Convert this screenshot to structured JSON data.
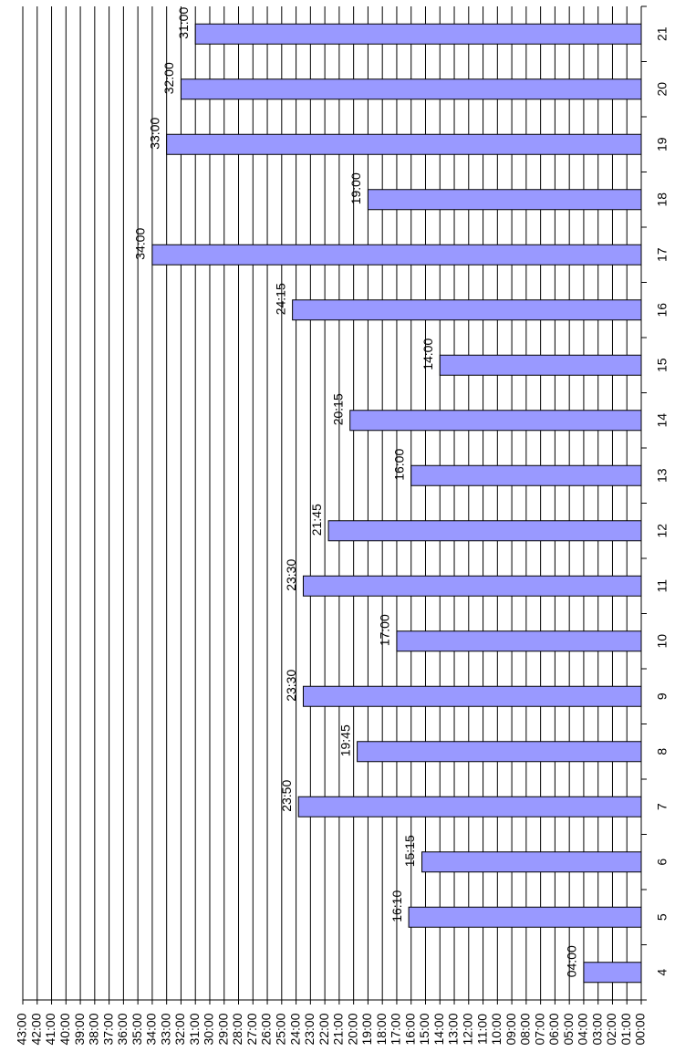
{
  "chart_data": {
    "type": "bar",
    "horizontal": true,
    "grid": true,
    "color": "#9999ff",
    "categories": [
      "4",
      "5",
      "6",
      "7",
      "8",
      "9",
      "10",
      "11",
      "12",
      "13",
      "14",
      "15",
      "16",
      "17",
      "18",
      "19",
      "20",
      "21"
    ],
    "values": [
      4,
      16.1667,
      15.25,
      23.8333,
      19.75,
      23.5,
      17,
      23.5,
      21.75,
      16,
      20.25,
      14,
      24.25,
      34,
      19,
      33,
      32,
      31
    ],
    "value_labels": [
      "04:00",
      "16:10",
      "15:15",
      "23:50",
      "19:45",
      "23:30",
      "17:00",
      "23:30",
      "21:45",
      "16:00",
      "20:15",
      "14:00",
      "24:15",
      "34:00",
      "19:00",
      "33:00",
      "32:00",
      "31:00"
    ],
    "xlim": [
      0,
      43
    ],
    "xticks": [
      {
        "value": 0,
        "label": "00:00"
      },
      {
        "value": 1,
        "label": "01:00"
      },
      {
        "value": 2,
        "label": "02:00"
      },
      {
        "value": 3,
        "label": "03:00"
      },
      {
        "value": 4,
        "label": "04:00"
      },
      {
        "value": 5,
        "label": "05:00"
      },
      {
        "value": 6,
        "label": "06:00"
      },
      {
        "value": 7,
        "label": "07:00"
      },
      {
        "value": 8,
        "label": "08:00"
      },
      {
        "value": 9,
        "label": "09:00"
      },
      {
        "value": 10,
        "label": "10:00"
      },
      {
        "value": 11,
        "label": "11:00"
      },
      {
        "value": 12,
        "label": "12:00"
      },
      {
        "value": 13,
        "label": "13:00"
      },
      {
        "value": 14,
        "label": "14:00"
      },
      {
        "value": 15,
        "label": "15:00"
      },
      {
        "value": 16,
        "label": "16:00"
      },
      {
        "value": 17,
        "label": "17:00"
      },
      {
        "value": 18,
        "label": "18:00"
      },
      {
        "value": 19,
        "label": "19:00"
      },
      {
        "value": 20,
        "label": "20:00"
      },
      {
        "value": 21,
        "label": "21:00"
      },
      {
        "value": 22,
        "label": "22:00"
      },
      {
        "value": 23,
        "label": "23:00"
      },
      {
        "value": 24,
        "label": "24:00"
      },
      {
        "value": 25,
        "label": "25:00"
      },
      {
        "value": 26,
        "label": "26:00"
      },
      {
        "value": 27,
        "label": "27:00"
      },
      {
        "value": 28,
        "label": "28:00"
      },
      {
        "value": 29,
        "label": "29:00"
      },
      {
        "value": 30,
        "label": "30:00"
      },
      {
        "value": 31,
        "label": "31:00"
      },
      {
        "value": 32,
        "label": "32:00"
      },
      {
        "value": 33,
        "label": "33:00"
      },
      {
        "value": 34,
        "label": "34:00"
      },
      {
        "value": 35,
        "label": "35:00"
      },
      {
        "value": 36,
        "label": "36:00"
      },
      {
        "value": 37,
        "label": "37:00"
      },
      {
        "value": 38,
        "label": "38:00"
      },
      {
        "value": 39,
        "label": "39:00"
      },
      {
        "value": 40,
        "label": "40:00"
      },
      {
        "value": 41,
        "label": "41:00"
      },
      {
        "value": 42,
        "label": "42:00"
      },
      {
        "value": 43,
        "label": "43:00"
      }
    ]
  }
}
